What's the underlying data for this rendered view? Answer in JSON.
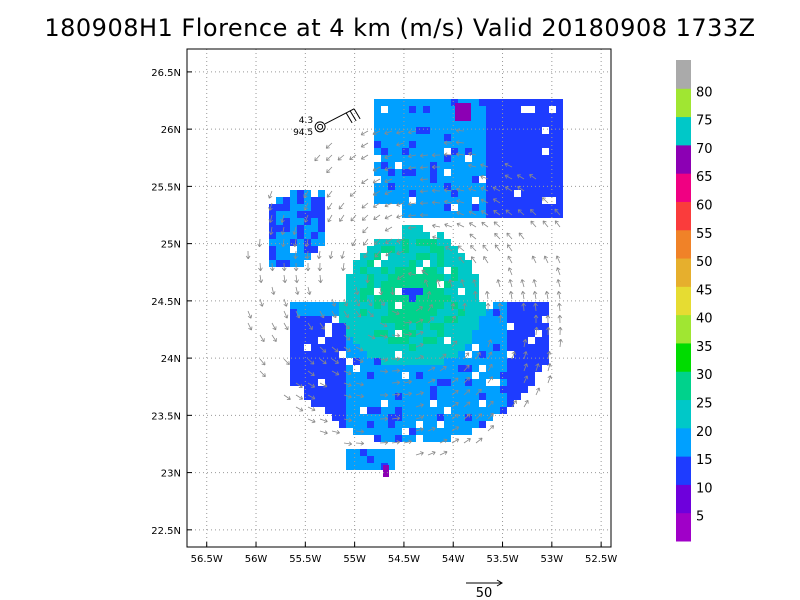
{
  "title": "180908H1 Florence at 4 km (m/s) Valid 20180908 1733Z",
  "map": {
    "lon_range": [
      -56.7,
      -52.4
    ],
    "lat_range": [
      22.35,
      26.7
    ],
    "lon_ticks": [
      {
        "value": -56.5,
        "label": "56.5W"
      },
      {
        "value": -56,
        "label": "56W"
      },
      {
        "value": -55.5,
        "label": "55.5W"
      },
      {
        "value": -55,
        "label": "55W"
      },
      {
        "value": -54.5,
        "label": "54.5W"
      },
      {
        "value": -54,
        "label": "54W"
      },
      {
        "value": -53.5,
        "label": "53.5W"
      },
      {
        "value": -53,
        "label": "53W"
      },
      {
        "value": -52.5,
        "label": "52.5W"
      }
    ],
    "lat_ticks": [
      {
        "value": 22.5,
        "label": "22.5N"
      },
      {
        "value": 23,
        "label": "23N"
      },
      {
        "value": 23.5,
        "label": "23.5N"
      },
      {
        "value": 24,
        "label": "24N"
      },
      {
        "value": 24.5,
        "label": "24.5N"
      },
      {
        "value": 25,
        "label": "25N"
      },
      {
        "value": 25.5,
        "label": "25.5N"
      },
      {
        "value": 26,
        "label": "26N"
      },
      {
        "value": 26.5,
        "label": "26.5N"
      }
    ],
    "grid": true,
    "storm_center": {
      "lon": -54.45,
      "lat": 24.6
    },
    "station": {
      "lon": -55.35,
      "lat": 26.02,
      "top_value": "4.3",
      "bottom_value": "94.5"
    }
  },
  "colorbar": {
    "labels": [
      "5",
      "10",
      "15",
      "20",
      "25",
      "30",
      "35",
      "40",
      "45",
      "50",
      "55",
      "60",
      "65",
      "70",
      "75",
      "80"
    ],
    "colors": [
      "#a000c8",
      "#6e00dc",
      "#1e3cff",
      "#00a0ff",
      "#00c8c8",
      "#00d28c",
      "#00dc00",
      "#a0e632",
      "#e6dc32",
      "#e6af2d",
      "#f08228",
      "#fa3c3c",
      "#f00082",
      "#8c00b4",
      "#00c8c8",
      "#a0e632",
      "#aaaaaa"
    ]
  },
  "reference_vector": {
    "label": "50"
  }
}
